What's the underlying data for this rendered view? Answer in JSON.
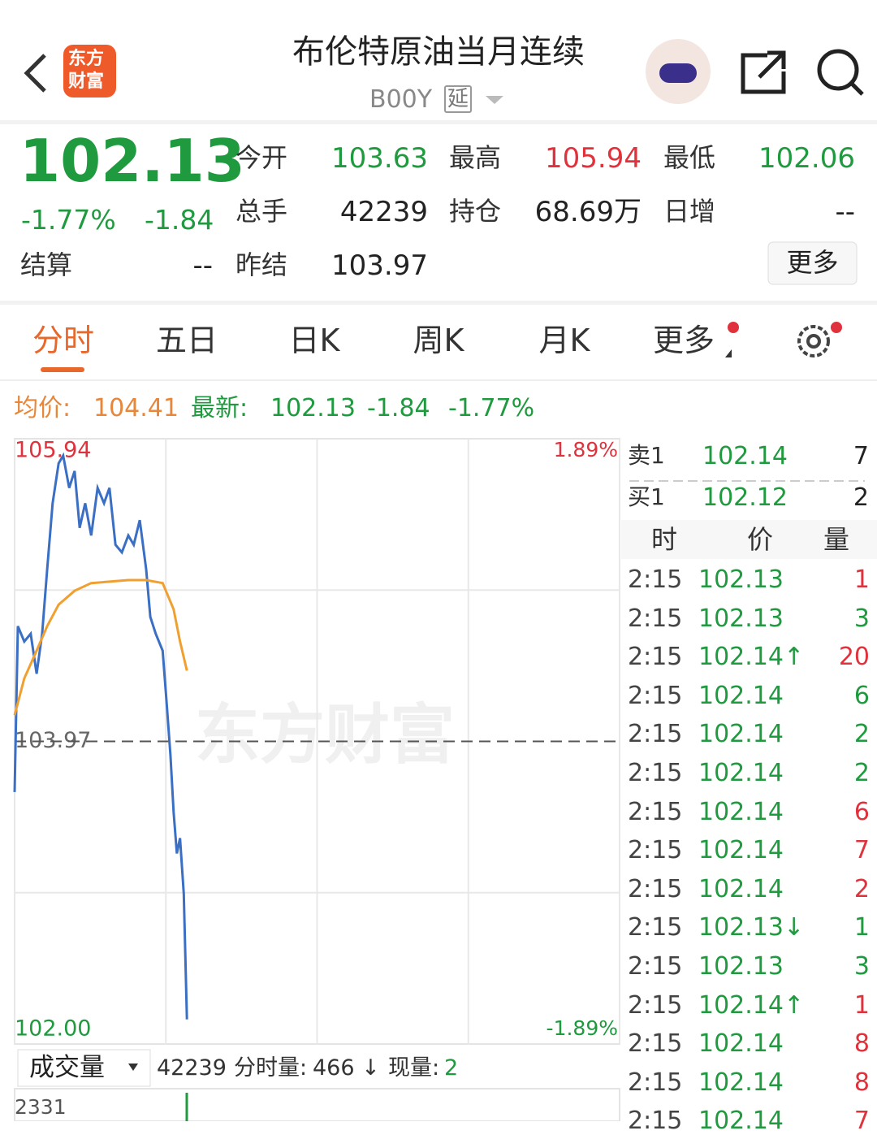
{
  "header": {
    "logo_top": "东方",
    "logo_bottom": "财富",
    "title": "布伦特原油当月连续",
    "code": "B00Y",
    "badge": "延"
  },
  "quote": {
    "price": "102.13",
    "change_pct": "-1.77%",
    "change": "-1.84",
    "fields": [
      {
        "label": "今开",
        "value": "103.63",
        "color": "#1f9a3f"
      },
      {
        "label": "最高",
        "value": "105.94",
        "color": "#e0323c"
      },
      {
        "label": "最低",
        "value": "102.06",
        "color": "#1f9a3f"
      },
      {
        "label": "总手",
        "value": "42239",
        "color": "#222222"
      },
      {
        "label": "持仓",
        "value": "68.69万",
        "color": "#222222"
      },
      {
        "label": "日增",
        "value": "--",
        "color": "#222222"
      },
      {
        "label": "结算",
        "value": "--",
        "color": "#222222"
      },
      {
        "label": "昨结",
        "value": "103.97",
        "color": "#222222"
      }
    ],
    "more": "更多"
  },
  "tabs": [
    "分时",
    "五日",
    "日K",
    "周K",
    "月K",
    "更多"
  ],
  "summary": {
    "avg_label": "均价:",
    "avg": "104.41",
    "last_label": "最新:",
    "last": "102.13",
    "change": "-1.84",
    "change_pct": "-1.77%"
  },
  "chart_data": {
    "type": "line",
    "watermark": "东方财富",
    "xlim": [
      0,
      1320
    ],
    "xticks": [
      0,
      330,
      660,
      990,
      1320
    ],
    "ylim": [
      102.0,
      105.94
    ],
    "yticks": [
      105.94,
      103.97,
      {
        "value": 102,
        "label": "102.00"
      }
    ],
    "y2lim": [
      -1.89,
      1.89
    ],
    "y2ticks": [
      {
        "value": 1.89,
        "label": "1.89%"
      },
      {
        "value": -1.89,
        "label": "-1.89%"
      }
    ],
    "grid": true,
    "series": [
      {
        "color": "#3a6fc4",
        "x": [
          0,
          7,
          21,
          35,
          48,
          60,
          71,
          83,
          96,
          106,
          119,
          131,
          142,
          154,
          167,
          181,
          195,
          207,
          220,
          234,
          248,
          260,
          273,
          287,
          296,
          308,
          323,
          331,
          340,
          347,
          354,
          361,
          369,
          376
        ],
        "values": [
          103.64,
          104.72,
          104.62,
          104.67,
          104.41,
          104.67,
          105.09,
          105.52,
          105.78,
          105.83,
          105.62,
          105.73,
          105.36,
          105.52,
          105.31,
          105.62,
          105.52,
          105.62,
          105.25,
          105.2,
          105.31,
          105.25,
          105.41,
          105.09,
          104.78,
          104.67,
          104.56,
          104.25,
          103.88,
          103.51,
          103.24,
          103.34,
          102.98,
          102.16
        ]
      },
      {
        "color": "#f0a030",
        "x": [
          0,
          21,
          48,
          71,
          96,
          131,
          167,
          207,
          248,
          287,
          323,
          347,
          361,
          376
        ],
        "values": [
          104.14,
          104.38,
          104.56,
          104.72,
          104.86,
          104.95,
          105.0,
          105.01,
          105.02,
          105.02,
          105.0,
          104.83,
          104.62,
          104.43
        ]
      }
    ]
  },
  "volume": {
    "selector": "成交量",
    "total": "42239",
    "period_label": "分时量:",
    "period": "466 ↓",
    "now_label": "现量:",
    "now": "2",
    "max": "2331"
  },
  "book": [
    {
      "label": "卖1",
      "price": "102.14",
      "volume": "7"
    },
    {
      "label": "买1",
      "price": "102.12",
      "volume": "2"
    }
  ],
  "ticks_header": [
    "时",
    "价",
    "量"
  ],
  "ticks": [
    {
      "time": "2:15",
      "price": "102.13",
      "volume": "1",
      "color": "#e0323c"
    },
    {
      "time": "2:15",
      "price": "102.13",
      "volume": "3",
      "color": "#1f9a3f"
    },
    {
      "time": "2:15",
      "price": "102.14↑",
      "volume": "20",
      "color": "#e0323c"
    },
    {
      "time": "2:15",
      "price": "102.14",
      "volume": "6",
      "color": "#1f9a3f"
    },
    {
      "time": "2:15",
      "price": "102.14",
      "volume": "2",
      "color": "#1f9a3f"
    },
    {
      "time": "2:15",
      "price": "102.14",
      "volume": "2",
      "color": "#1f9a3f"
    },
    {
      "time": "2:15",
      "price": "102.14",
      "volume": "6",
      "color": "#e0323c"
    },
    {
      "time": "2:15",
      "price": "102.14",
      "volume": "7",
      "color": "#e0323c"
    },
    {
      "time": "2:15",
      "price": "102.14",
      "volume": "2",
      "color": "#e0323c"
    },
    {
      "time": "2:15",
      "price": "102.13↓",
      "volume": "1",
      "color": "#1f9a3f"
    },
    {
      "time": "2:15",
      "price": "102.13",
      "volume": "3",
      "color": "#1f9a3f"
    },
    {
      "time": "2:15",
      "price": "102.14↑",
      "volume": "1",
      "color": "#e0323c"
    },
    {
      "time": "2:15",
      "price": "102.14",
      "volume": "8",
      "color": "#e0323c"
    },
    {
      "time": "2:15",
      "price": "102.14",
      "volume": "8",
      "color": "#e0323c"
    },
    {
      "time": "2:15",
      "price": "102.14",
      "volume": "7",
      "color": "#e0323c"
    }
  ]
}
